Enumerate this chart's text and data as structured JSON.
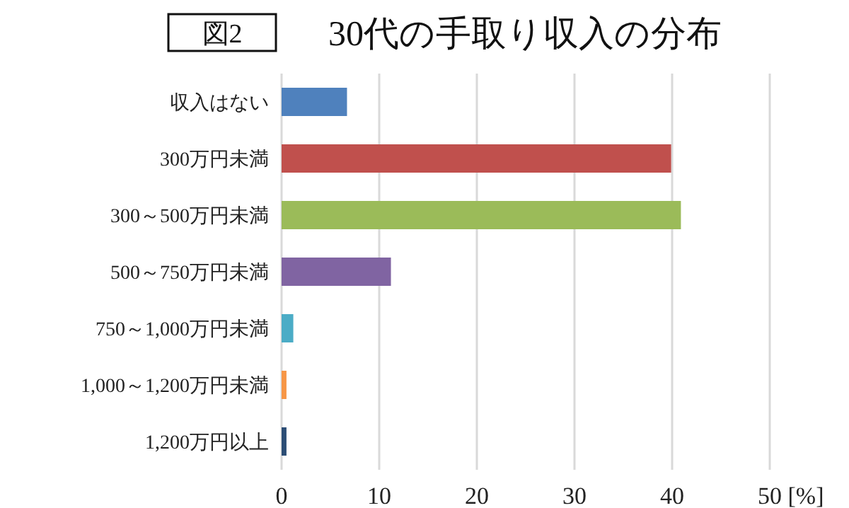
{
  "chart_data": {
    "type": "bar",
    "orientation": "horizontal",
    "title": "30代の手取り収入の分布",
    "annotations": [
      "図2"
    ],
    "categories": [
      "収入はない",
      "300万円未満",
      "300～500万円未満",
      "500～750万円未満",
      "750～1,000万円未満",
      "1,000～1,200万円未満",
      "1,200万円以上"
    ],
    "values": [
      6.7,
      39.9,
      40.9,
      11.2,
      1.2,
      0.5,
      0.5
    ],
    "colors": [
      "#4f81bd",
      "#c0504d",
      "#9bbb59",
      "#8064a2",
      "#4bacc6",
      "#f79646",
      "#2c4d75"
    ],
    "xlim": [
      0,
      50
    ],
    "xticks": [
      0,
      10,
      20,
      30,
      40,
      {
        "value": 50,
        "label": "50 [%]"
      }
    ],
    "grid": "x"
  }
}
